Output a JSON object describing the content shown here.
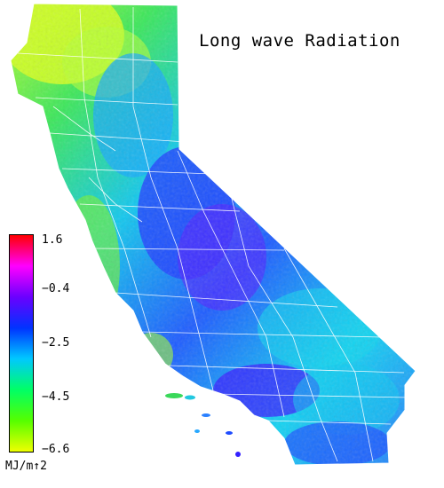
{
  "title": "Long wave Radiation",
  "legend": {
    "unit": "MJ/m↑2",
    "ticks": [
      "1.6",
      "−0.4",
      "−2.5",
      "−4.5",
      "−6.6"
    ],
    "colors": [
      "#ff0000",
      "#ff00ff",
      "#6a00ff",
      "#0033ff",
      "#00c8ff",
      "#00ff66",
      "#55ff00",
      "#eeff00"
    ]
  },
  "map": {
    "subject": "California",
    "colors": {
      "background": "#ffffff",
      "boundary": "#ffffff",
      "low_yellow": "#d9ff1a",
      "green": "#33ee44",
      "cyan": "#10d8f0",
      "blue": "#1c48ff",
      "violet": "#6a1cff"
    }
  }
}
